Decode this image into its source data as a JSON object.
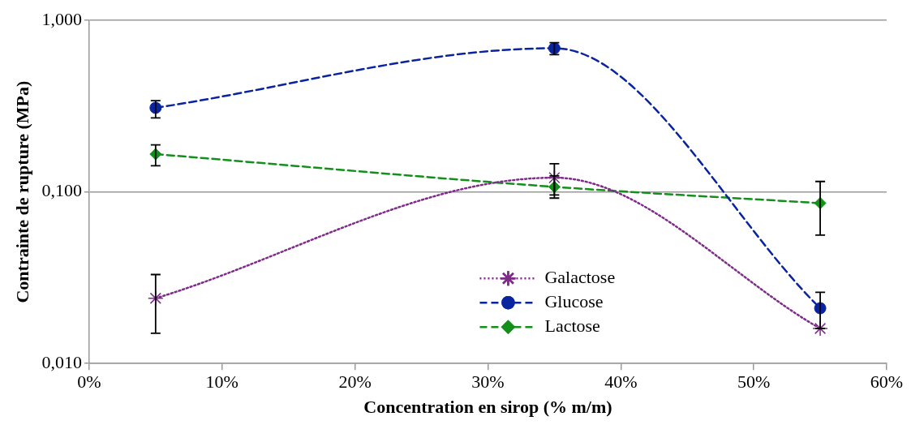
{
  "chart_data": {
    "type": "line",
    "xlabel": "Concentration en sirop (% m/m)",
    "ylabel": "Contrainte de rupture (MPa)",
    "x": [
      5,
      35,
      55
    ],
    "xlim": [
      0,
      60
    ],
    "xticks": [
      {
        "value": 0,
        "label": "0%"
      },
      {
        "value": 10,
        "label": "10%"
      },
      {
        "value": 20,
        "label": "20%"
      },
      {
        "value": 30,
        "label": "30%"
      },
      {
        "value": 40,
        "label": "40%"
      },
      {
        "value": 50,
        "label": "50%"
      },
      {
        "value": 60,
        "label": "60%"
      }
    ],
    "ylim": [
      0.01,
      1
    ],
    "yticks": [
      {
        "value": 0.01,
        "label": "0,010"
      },
      {
        "value": 0.1,
        "label": "0,100"
      },
      {
        "value": 1,
        "label": "1,000"
      }
    ],
    "log": "y",
    "grid": "y",
    "legend": "bottom",
    "series": [
      {
        "name": "Galactose",
        "color": "#7f2b8a",
        "marker": "cross",
        "line_style": "dotted",
        "values": [
          0.024,
          0.121,
          0.016
        ],
        "errors": [
          [
            0.015,
            0.033
          ],
          [
            0.096,
            0.146
          ],
          null
        ]
      },
      {
        "name": "Glucose",
        "color": "#0a24a0",
        "marker": "circle",
        "line_style": "dashed",
        "values": [
          0.309,
          0.687,
          0.021
        ],
        "errors": [
          [
            0.27,
            0.34
          ],
          [
            0.63,
            0.74
          ],
          [
            0.016,
            0.026
          ]
        ]
      },
      {
        "name": "Lactose",
        "color": "#12901a",
        "marker": "diamond",
        "line_style": "dashed",
        "values": [
          0.166,
          0.107,
          0.086
        ],
        "errors": [
          [
            0.142,
            0.188
          ],
          [
            0.092,
            0.124
          ],
          [
            0.056,
            0.115
          ]
        ]
      }
    ]
  }
}
